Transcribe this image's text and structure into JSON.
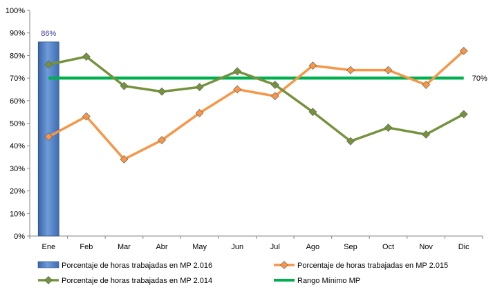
{
  "chart_data": {
    "type": "bar+line",
    "categories": [
      "Ene",
      "Feb",
      "Mar",
      "Abr",
      "May",
      "Jun",
      "Jul",
      "Ago",
      "Sep",
      "Oct",
      "Nov",
      "Dic"
    ],
    "ylim": [
      0,
      100
    ],
    "yticks": [
      "0%",
      "10%",
      "20%",
      "30%",
      "40%",
      "50%",
      "60%",
      "70%",
      "80%",
      "90%",
      "100%"
    ],
    "grid": false,
    "legend_position": "bottom",
    "bar_series": {
      "name": "Porcentaje de horas trabajadas en MP 2.016",
      "color": "#4F81BD",
      "values": [
        86
      ],
      "data_labels": [
        "86%"
      ]
    },
    "line_series": [
      {
        "name": "Porcentaje de horas trabajadas en MP 2.015",
        "color": "#F79646",
        "values": [
          44,
          53,
          34,
          42.5,
          54.5,
          65,
          62,
          75.5,
          73.5,
          73.5,
          67,
          82
        ]
      },
      {
        "name": "Porcentaje de horas trabajadas en MP 2.014",
        "color": "#76923C",
        "values": [
          76,
          79.5,
          66.5,
          64,
          66,
          73,
          67,
          55,
          42,
          48,
          45,
          54
        ]
      }
    ],
    "reference_line": {
      "name": "Rango Mínimo MP",
      "color": "#00B050",
      "value": 70,
      "label": "70%"
    }
  }
}
